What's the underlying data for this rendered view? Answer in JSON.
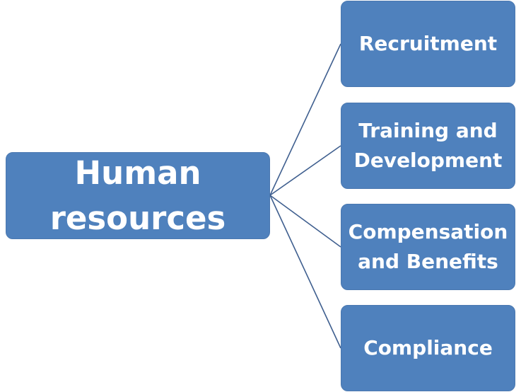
{
  "diagram": {
    "root": {
      "label": "Human\nresources"
    },
    "children": [
      {
        "label": "Recruitment"
      },
      {
        "label": "Training and\nDevelopment"
      },
      {
        "label": "Compensation\nand Benefits"
      },
      {
        "label": "Compliance"
      }
    ]
  },
  "colors": {
    "node_fill": "#4f81bd",
    "node_text": "#ffffff",
    "connector": "#3f5f8f",
    "background": "#ffffff"
  }
}
